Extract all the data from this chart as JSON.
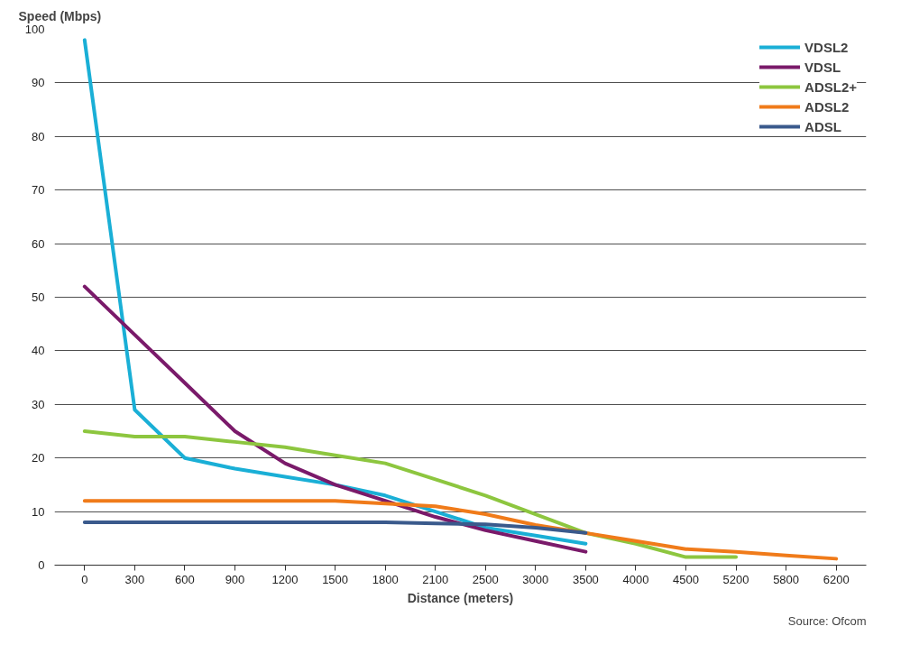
{
  "chart_data": {
    "type": "line",
    "xlabel": "Distance (meters)",
    "ylabel": "Speed (Mbps)",
    "categories": [
      "0",
      "300",
      "600",
      "900",
      "1200",
      "1500",
      "1800",
      "2100",
      "2500",
      "3000",
      "3500",
      "4000",
      "4500",
      "5200",
      "5800",
      "6200"
    ],
    "series": [
      {
        "name": "VDSL2",
        "color": "#1aafd6",
        "values": [
          98,
          29,
          20,
          18,
          16.5,
          15,
          13,
          10,
          7,
          5.5,
          4,
          null,
          null,
          null,
          null,
          null
        ]
      },
      {
        "name": "VDSL",
        "color": "#7a1a6a",
        "values": [
          52,
          43,
          34,
          25,
          19,
          15,
          12,
          9,
          6.5,
          4.5,
          2.5,
          null,
          null,
          null,
          null,
          null
        ]
      },
      {
        "name": "ADSL2+",
        "color": "#8dc63f",
        "values": [
          25,
          24,
          24,
          23,
          22,
          20.5,
          19,
          16,
          13,
          9.5,
          6,
          4,
          1.5,
          1.5,
          null,
          null
        ]
      },
      {
        "name": "ADSL2",
        "color": "#f07b1a",
        "values": [
          12,
          12,
          12,
          12,
          12,
          12,
          11.5,
          11,
          9.5,
          7.5,
          6,
          4.5,
          3,
          2.5,
          1.8,
          1.2
        ]
      },
      {
        "name": "ADSL",
        "color": "#3a5a8c",
        "values": [
          8,
          8,
          8,
          8,
          8,
          8,
          8,
          7.8,
          7.6,
          7,
          6,
          null,
          null,
          null,
          null,
          null
        ]
      }
    ],
    "ylim": [
      0,
      100
    ],
    "yticks": [
      0,
      10,
      20,
      30,
      40,
      50,
      60,
      70,
      80,
      90,
      100
    ],
    "grid": "y",
    "legend": "top right",
    "marker": "none",
    "line_style": "solid",
    "annotations": [
      "Source: Ofcom"
    ]
  }
}
